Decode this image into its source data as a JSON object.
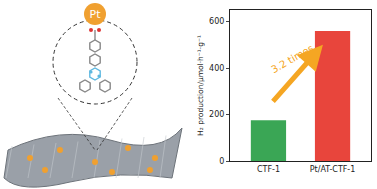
{
  "chart_data": {
    "type": "bar",
    "categories": [
      "CTF-1",
      "Pt/AT-CTF-1"
    ],
    "values": [
      175,
      560
    ],
    "colors": [
      "#3aa655",
      "#e8453c"
    ],
    "ylabel": "H₂ production/μmol·h⁻¹·g⁻¹",
    "ylim": [
      0,
      650
    ],
    "yticks": [
      0,
      200,
      400,
      600
    ],
    "annotations": [
      "3.2 times"
    ],
    "grid": false
  },
  "illustration": {
    "atom_label": "Pt"
  }
}
